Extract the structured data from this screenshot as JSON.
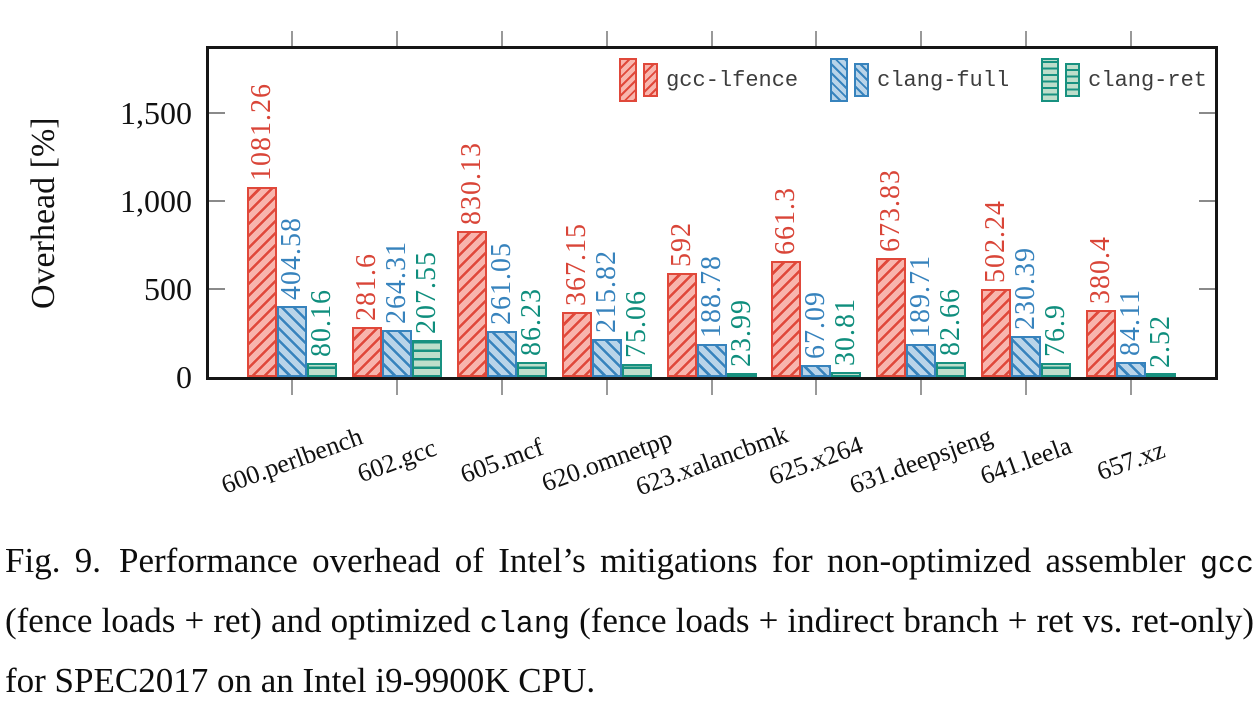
{
  "figure": {
    "caption": {
      "label": "Fig. 9.",
      "segments": [
        {
          "text": "Performance overhead of Intel’s mitigations for non-optimized assembler ",
          "mono": false
        },
        {
          "text": "gcc",
          "mono": true
        },
        {
          "text": " (fence loads + ret) and optimized ",
          "mono": false
        },
        {
          "text": "clang",
          "mono": true
        },
        {
          "text": " (fence loads + indirect branch + ret vs. ret-only) for SPEC2017 on an Intel i9-9900K CPU.",
          "mono": false
        }
      ]
    }
  },
  "chart_data": {
    "type": "bar",
    "title": "",
    "xlabel": "",
    "ylabel": "Overhead [%]",
    "ylim": [
      0,
      1863
    ],
    "yticks": [
      0,
      500,
      1000,
      1500
    ],
    "ytick_labels": [
      "0",
      "500",
      "1,000",
      "1,500"
    ],
    "grid": false,
    "legend_position": "top-right-inside",
    "categories": [
      "600.perlbench",
      "602.gcc",
      "605.mcf",
      "620.omnetpp",
      "623.xalancbmk",
      "625.x264",
      "631.deepsjeng",
      "641.leela",
      "657.xz"
    ],
    "series": [
      {
        "name": "gcc-lfence",
        "color": "#e0483a",
        "fill": "#f8b5ad",
        "label_color": "#d94538",
        "hatch": "ne-lines",
        "values": [
          1081.26,
          281.6,
          830.13,
          367.15,
          592,
          661.3,
          673.83,
          502.24,
          380.4
        ],
        "value_labels": [
          "1081.26",
          "281.6",
          "830.13",
          "367.15",
          "592",
          "661.3",
          "673.83",
          "502.24",
          "380.4"
        ]
      },
      {
        "name": "clang-full",
        "color": "#3783bd",
        "fill": "#b9d4e9",
        "label_color": "#3783bd",
        "hatch": "nw-lines",
        "values": [
          404.58,
          264.31,
          261.05,
          215.82,
          188.78,
          67.09,
          189.71,
          230.39,
          84.11
        ],
        "value_labels": [
          "404.58",
          "264.31",
          "261.05",
          "215.82",
          "188.78",
          "67.09",
          "189.71",
          "230.39",
          "84.11"
        ]
      },
      {
        "name": "clang-ret",
        "color": "#189180",
        "fill": "#bedecb",
        "label_color": "#0f8e7d",
        "hatch": "horizontal-lines",
        "values": [
          80.16,
          207.55,
          86.23,
          75.06,
          23.99,
          30.81,
          82.66,
          76.9,
          2.52
        ],
        "value_labels": [
          "80.16",
          "207.55",
          "86.23",
          "75.06",
          "23.99",
          "30.81",
          "82.66",
          "76.9",
          "2.52"
        ]
      }
    ],
    "colors": {
      "axis": "#161616",
      "tick_marks": "#8a8a8a",
      "tick_labels": "#111111",
      "legend_text": "#3d3d3d"
    }
  }
}
